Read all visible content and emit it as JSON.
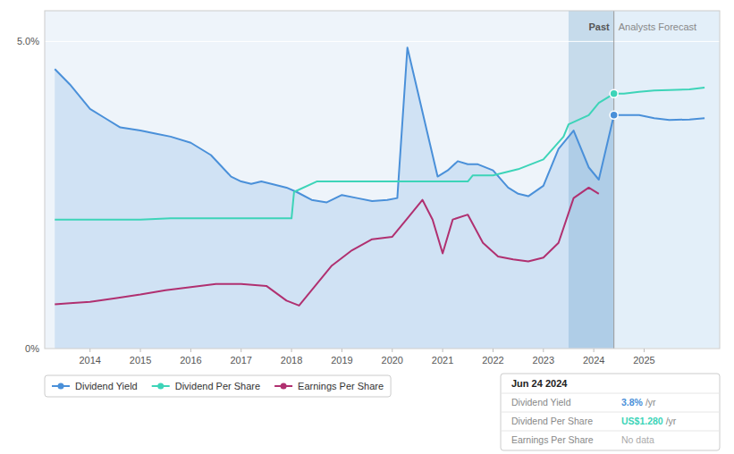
{
  "chart_data": {
    "type": "line",
    "xlim": [
      2013.1,
      2026.5
    ],
    "xticks": [
      2014,
      2015,
      2016,
      2017,
      2018,
      2019,
      2020,
      2021,
      2022,
      2023,
      2024,
      2025
    ],
    "ylim": [
      0.0,
      5.5
    ],
    "yticks": [
      {
        "value": 0,
        "label": "0%"
      },
      {
        "value": 5.0,
        "label": "5.0%"
      }
    ],
    "grid": true,
    "legend": "bottom-left",
    "series": [
      {
        "name": "Dividend Yield",
        "color": "#4A90D9",
        "marker": "circle",
        "x": [
          2013.3,
          2013.6,
          2014.0,
          2014.3,
          2014.6,
          2015.0,
          2015.3,
          2015.6,
          2016.0,
          2016.4,
          2016.8,
          2017.0,
          2017.2,
          2017.4,
          2017.6,
          2017.9,
          2018.1,
          2018.4,
          2018.7,
          2019.0,
          2019.3,
          2019.6,
          2019.9,
          2020.1,
          2020.3,
          2020.5,
          2020.7,
          2020.9,
          2021.1,
          2021.3,
          2021.5,
          2021.7,
          2022.0,
          2022.3,
          2022.5,
          2022.7,
          2023.0,
          2023.3,
          2023.6,
          2023.9,
          2024.1,
          2024.4,
          2024.6,
          2024.9,
          2025.2,
          2025.5,
          2025.9,
          2026.2
        ],
        "values": [
          4.55,
          4.3,
          3.9,
          3.75,
          3.6,
          3.55,
          3.5,
          3.45,
          3.35,
          3.15,
          2.8,
          2.72,
          2.68,
          2.72,
          2.68,
          2.62,
          2.55,
          2.42,
          2.38,
          2.5,
          2.45,
          2.4,
          2.42,
          2.45,
          4.9,
          4.2,
          3.5,
          2.8,
          2.9,
          3.05,
          3.0,
          3.0,
          2.9,
          2.62,
          2.52,
          2.48,
          2.65,
          3.25,
          3.55,
          2.95,
          2.75,
          3.8,
          3.8,
          3.8,
          3.75,
          3.72,
          3.73,
          3.75
        ]
      },
      {
        "name": "Dividend Per Share",
        "color": "#3dd4b8",
        "marker": "circle",
        "x": [
          2013.3,
          2013.6,
          2014.0,
          2014.3,
          2015.0,
          2015.6,
          2016.0,
          2016.5,
          2017.0,
          2017.2,
          2017.4,
          2017.6,
          2018.0,
          2018.05,
          2018.5,
          2019.0,
          2019.5,
          2020.0,
          2020.5,
          2021.0,
          2021.5,
          2021.6,
          2022.0,
          2022.5,
          2023.0,
          2023.4,
          2023.5,
          2023.9,
          2024.1,
          2024.4,
          2024.6,
          2024.9,
          2025.2,
          2025.5,
          2025.9,
          2026.2
        ],
        "values": [
          2.1,
          2.1,
          2.1,
          2.1,
          2.1,
          2.12,
          2.12,
          2.12,
          2.12,
          2.12,
          2.12,
          2.12,
          2.12,
          2.55,
          2.72,
          2.72,
          2.72,
          2.72,
          2.72,
          2.72,
          2.72,
          2.82,
          2.82,
          2.92,
          3.08,
          3.45,
          3.65,
          3.8,
          4.0,
          4.15,
          4.15,
          4.18,
          4.2,
          4.21,
          4.22,
          4.25
        ]
      },
      {
        "name": "Earnings Per Share",
        "color": "#b03070",
        "marker": "circle",
        "x": [
          2013.3,
          2013.6,
          2014.0,
          2014.5,
          2015.0,
          2015.5,
          2016.0,
          2016.5,
          2017.0,
          2017.5,
          2017.9,
          2018.15,
          2018.8,
          2019.2,
          2019.6,
          2020.0,
          2020.3,
          2020.6,
          2020.8,
          2021.0,
          2021.2,
          2021.5,
          2021.8,
          2022.1,
          2022.4,
          2022.7,
          2023.0,
          2023.3,
          2023.6,
          2023.9,
          2024.1
        ],
        "values": [
          0.72,
          0.74,
          0.76,
          0.82,
          0.88,
          0.95,
          1.0,
          1.05,
          1.05,
          1.02,
          0.78,
          0.7,
          1.35,
          1.6,
          1.78,
          1.82,
          2.12,
          2.42,
          2.1,
          1.55,
          2.1,
          2.18,
          1.72,
          1.5,
          1.45,
          1.42,
          1.48,
          1.72,
          2.45,
          2.62,
          2.52
        ]
      }
    ],
    "divider_x": 2024.4,
    "highlight_x": [
      2023.5,
      2024.4
    ],
    "annotations": [
      {
        "text": "Past"
      },
      {
        "text": "Analysts Forecast"
      }
    ],
    "markers": {
      "x": 2024.4,
      "values": [
        3.8,
        4.15
      ]
    },
    "tooltip": {
      "title": "Jun 24 2024",
      "rows": [
        {
          "label": "Dividend Yield",
          "value": "3.8%",
          "unit": "/yr",
          "color": "#4A90D9"
        },
        {
          "label": "Dividend Per Share",
          "value": "US$1.280",
          "unit": "/yr",
          "color": "#3dd4b8"
        },
        {
          "label": "Earnings Per Share",
          "value": "No data"
        }
      ]
    }
  }
}
